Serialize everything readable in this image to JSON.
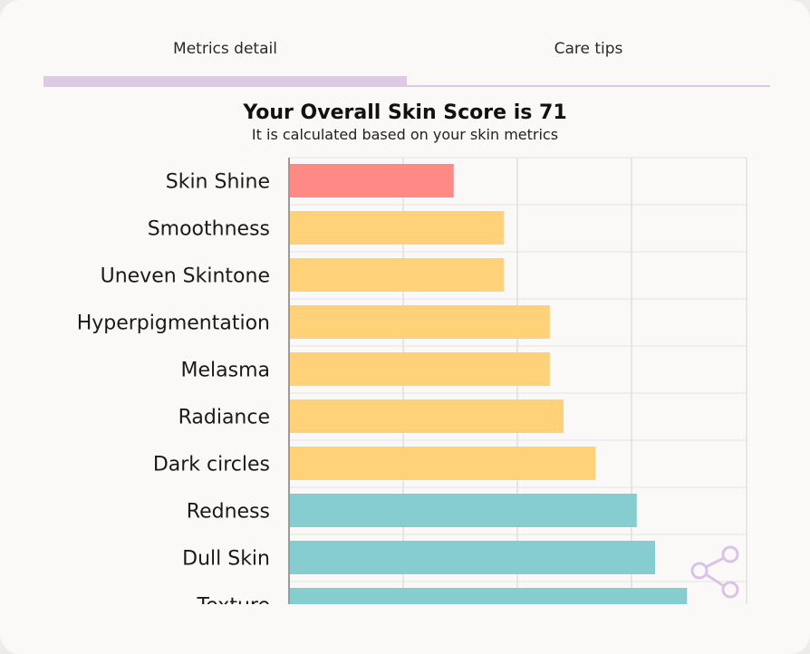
{
  "tabs": [
    {
      "label": "Metrics detail",
      "active": true
    },
    {
      "label": "Care tips",
      "active": false
    }
  ],
  "chart_data": {
    "type": "bar",
    "orientation": "horizontal",
    "title": "Your Overall Skin Score is 71",
    "subtitle": "It is calculated based on your skin metrics",
    "categories": [
      "Skin Shine",
      "Smoothness",
      "Uneven Skintone",
      "Hyperpigmentation",
      "Melasma",
      "Radiance",
      "Dark circles",
      "Redness",
      "Dull Skin",
      "Texture"
    ],
    "values": [
      36,
      47,
      47,
      57,
      57,
      60,
      67,
      76,
      80,
      87
    ],
    "bar_colors": [
      "#ff8a85",
      "#ffd27a",
      "#ffd27a",
      "#ffd27a",
      "#ffd27a",
      "#ffd27a",
      "#ffd27a",
      "#85cdcf",
      "#85cdcf",
      "#85cdcf"
    ],
    "xlim": [
      0,
      100
    ],
    "grid": true,
    "x_tick_labels_shown": false
  },
  "icons": {
    "share": "share-icon"
  },
  "colors": {
    "accent": "#ddc9e4",
    "low": "#ff8a85",
    "medium": "#ffd27a",
    "high": "#85cdcf"
  }
}
